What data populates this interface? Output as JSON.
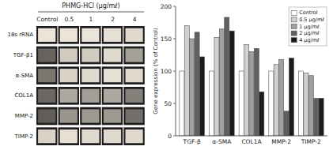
{
  "chart_data": [
    {
      "type": "heatmap",
      "title": "PHMG-HCl (μg/mℓ)",
      "categories": [
        "Control",
        "0.5",
        "1",
        "2",
        "4"
      ],
      "row_labels": [
        "18s rRNA",
        "TGF-β1",
        "α-SMA",
        "COL1A",
        "MMP-2",
        "TIMP-2"
      ],
      "color": "#1e1e1e",
      "cells": [
        [
          0.92,
          0.92,
          0.92,
          0.9,
          0.88
        ],
        [
          0.4,
          0.82,
          0.82,
          0.88,
          0.65
        ],
        [
          0.48,
          0.85,
          0.88,
          0.9,
          0.88
        ],
        [
          0.42,
          0.68,
          0.64,
          0.68,
          0.52
        ],
        [
          0.38,
          0.6,
          0.62,
          0.62,
          0.45
        ],
        [
          0.85,
          0.9,
          0.88,
          0.88,
          0.88
        ]
      ]
    },
    {
      "type": "bar",
      "categories": [
        "TGF-β",
        "α-SMA",
        "COL1A",
        "MMP-2",
        "TIMP-2"
      ],
      "series": [
        {
          "name": "Control",
          "color": "#ffffff",
          "values": [
            100,
            100,
            100,
            100,
            100
          ]
        },
        {
          "name": "0.5 μg/mℓ",
          "color": "#d0d0d0",
          "values": [
            170,
            152,
            141,
            110,
            97
          ]
        },
        {
          "name": "1 μg/mℓ",
          "color": "#a0a0a0",
          "values": [
            150,
            165,
            130,
            118,
            93
          ]
        },
        {
          "name": "2 μg/mℓ",
          "color": "#606060",
          "values": [
            160,
            183,
            135,
            38,
            58
          ]
        },
        {
          "name": "4 μg/mℓ",
          "color": "#1a1a1a",
          "values": [
            122,
            162,
            68,
            120,
            58
          ]
        }
      ],
      "ylabel": "Gene expression (% of Control)",
      "ylim": [
        0,
        200
      ],
      "yticks": [
        0,
        50,
        100,
        150,
        200
      ],
      "legend": "upper right"
    }
  ]
}
